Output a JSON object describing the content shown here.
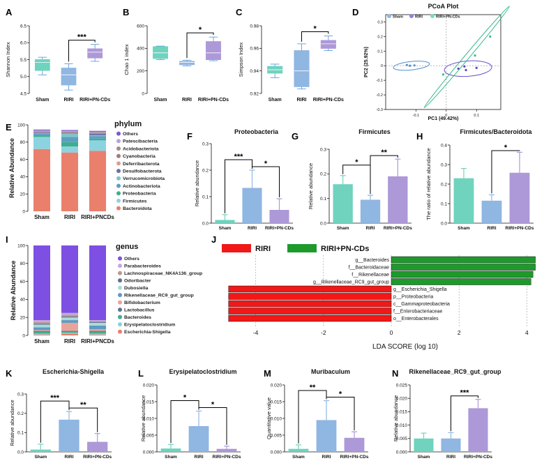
{
  "panel_letters": [
    "A",
    "B",
    "C",
    "D",
    "E",
    "F",
    "G",
    "H",
    "I",
    "J",
    "K",
    "L",
    "M",
    "N"
  ],
  "colors": {
    "sham": "#6fd3be",
    "riri": "#90b6e2",
    "pn": "#ad98d8",
    "riri_green": "#1e9a2c",
    "riri_red": "#f01818"
  },
  "chart_data": [
    {
      "id": "A",
      "type": "box",
      "title": "",
      "ylabel": "Shannon Index",
      "categories": [
        "Sham",
        "RIRI",
        "RIRI+PN-CDs"
      ],
      "ylim": [
        4.5,
        6.5
      ],
      "yticks": [
        "4.5",
        "5.0",
        "5.5",
        "6.0",
        "6.5"
      ],
      "boxes": [
        {
          "min": 5.05,
          "q1": 5.18,
          "median": 5.42,
          "q3": 5.5,
          "max": 5.57
        },
        {
          "min": 4.6,
          "q1": 4.75,
          "median": 5.05,
          "q3": 5.25,
          "max": 5.38
        },
        {
          "min": 5.45,
          "q1": 5.55,
          "median": 5.72,
          "q3": 5.82,
          "max": 5.95
        }
      ],
      "significance": [
        {
          "from": 1,
          "to": 2,
          "label": "***"
        }
      ]
    },
    {
      "id": "B",
      "type": "box",
      "title": "",
      "ylabel": "Chao 1 index",
      "categories": [
        "Sham",
        "RIRI",
        "RIRI+PN-CDs"
      ],
      "ylim": [
        0,
        600
      ],
      "yticks": [
        "0",
        "200",
        "400",
        "600"
      ],
      "boxes": [
        {
          "min": 300,
          "q1": 310,
          "median": 360,
          "q3": 415,
          "max": 420
        },
        {
          "min": 245,
          "q1": 255,
          "median": 275,
          "q3": 285,
          "max": 295
        },
        {
          "min": 290,
          "q1": 300,
          "median": 360,
          "q3": 460,
          "max": 500
        }
      ],
      "significance": [
        {
          "from": 1,
          "to": 2,
          "label": "*"
        }
      ]
    },
    {
      "id": "C",
      "type": "box",
      "title": "",
      "ylabel": "Simpson Index",
      "categories": [
        "Sham",
        "RIRI",
        "RIRI+PN-CDs"
      ],
      "ylim": [
        0.92,
        0.98
      ],
      "yticks": [
        "0.92",
        "0.94",
        "0.96",
        "0.98"
      ],
      "boxes": [
        {
          "min": 0.934,
          "q1": 0.938,
          "median": 0.941,
          "q3": 0.944,
          "max": 0.946
        },
        {
          "min": 0.924,
          "q1": 0.926,
          "median": 0.94,
          "q3": 0.958,
          "max": 0.964
        },
        {
          "min": 0.958,
          "q1": 0.96,
          "median": 0.964,
          "q3": 0.967,
          "max": 0.971
        }
      ],
      "significance": [
        {
          "from": 1,
          "to": 2,
          "label": "*"
        }
      ]
    },
    {
      "id": "D",
      "type": "scatter",
      "title": "PCoA Plot",
      "xlabel": "PC1 (49.42%)",
      "ylabel": "PC2 (25.92%)",
      "xlim": [
        -0.2,
        0.18
      ],
      "ylim": [
        -0.3,
        0.35
      ],
      "xticks": [
        "-0.1",
        "0",
        "0.1"
      ],
      "yticks": [
        "-0.3",
        "-0.2",
        "-0.1",
        "0",
        "0.1",
        "0.2",
        "0.3"
      ],
      "legend": [
        "Sham",
        "RIRI",
        "RIRI+PN-CDs"
      ],
      "series": [
        {
          "name": "Sham",
          "points": [
            [
              -0.13,
              0.005
            ],
            [
              -0.12,
              0.0
            ],
            [
              -0.105,
              0.002
            ]
          ]
        },
        {
          "name": "RIRI",
          "points": [
            [
              0.04,
              -0.02
            ],
            [
              0.06,
              -0.005
            ],
            [
              0.1,
              -0.015
            ],
            [
              0.065,
              -0.03
            ]
          ]
        },
        {
          "name": "RIRI+PN-CDs",
          "points": [
            [
              -0.01,
              -0.06
            ],
            [
              0.095,
              0.07
            ],
            [
              0.145,
              0.2
            ]
          ]
        }
      ]
    },
    {
      "id": "E",
      "type": "stacked_bar",
      "ylabel": "Relative Abundance",
      "legend_title": "phylum",
      "categories": [
        "Sham",
        "RIRI",
        "RIRI+PNCDs"
      ],
      "ylim": [
        0,
        100
      ],
      "yticks": [
        "0",
        "20",
        "40",
        "60",
        "80",
        "100"
      ],
      "series": [
        {
          "name": "Bacteroidota",
          "values": [
            72,
            68,
            70
          ]
        },
        {
          "name": "Firmicutes",
          "values": [
            14,
            7,
            12
          ]
        },
        {
          "name": "Proteobacteria",
          "values": [
            2,
            5,
            2
          ]
        },
        {
          "name": "Actinobacteriota",
          "values": [
            2,
            6,
            3
          ]
        },
        {
          "name": "Verrucomicrobiota",
          "values": [
            0.5,
            4,
            1
          ]
        },
        {
          "name": "Desulfobacterota",
          "values": [
            1,
            1,
            2
          ]
        },
        {
          "name": "Deferribacterota",
          "values": [
            0.5,
            0.5,
            0.5
          ]
        },
        {
          "name": "Cyanobacteria",
          "values": [
            0.5,
            0.5,
            0.5
          ]
        },
        {
          "name": "Acidobacteriota",
          "values": [
            0.5,
            0.5,
            0.5
          ]
        },
        {
          "name": "Patescibacteria",
          "values": [
            0.5,
            0.5,
            0.5
          ]
        },
        {
          "name": "Others",
          "values": [
            1,
            1,
            1
          ]
        }
      ],
      "legend_order": [
        "Others",
        "Patescibacteria",
        "Acidobacteriota",
        "Cyanobacteria",
        "Deferribacterota",
        "Desulfobacterota",
        "Verrucomicrobiota",
        "Actinobacteriota",
        "Proteobacteria",
        "Firmicutes",
        "Bacteroidota"
      ]
    },
    {
      "id": "F",
      "type": "bar",
      "title": "Proteobacteria",
      "ylabel": "Relative abundance",
      "categories": [
        "Sham",
        "RIRI",
        "RIRI+PN-CDs"
      ],
      "values": [
        0.012,
        0.133,
        0.05
      ],
      "errors": [
        0.02,
        0.067,
        0.042
      ],
      "ylim": [
        0,
        0.3
      ],
      "yticks": [
        "0.0",
        "0.1",
        "0.2",
        "0.3"
      ],
      "significance": [
        {
          "from": 0,
          "to": 1,
          "label": "***"
        },
        {
          "from": 1,
          "to": 2,
          "label": "*"
        }
      ]
    },
    {
      "id": "G",
      "type": "bar",
      "title": "Firmicutes",
      "ylabel": "Relative abundance",
      "categories": [
        "Sham",
        "RIRI",
        "RIRI+PN-CDs"
      ],
      "values": [
        0.158,
        0.095,
        0.19
      ],
      "errors": [
        0.035,
        0.018,
        0.07
      ],
      "ylim": [
        0,
        0.3
      ],
      "yticks": [
        "0.0",
        "0.1",
        "0.2",
        "0.3"
      ],
      "significance": [
        {
          "from": 0,
          "to": 1,
          "label": "*"
        },
        {
          "from": 1,
          "to": 2,
          "label": "**"
        }
      ]
    },
    {
      "id": "H",
      "type": "bar",
      "title": "Firmicutes/Bacteroidota",
      "ylabel": "The ratio of relative abundance",
      "categories": [
        "Sham",
        "RIRI",
        "RIRI+PN-CDs"
      ],
      "values": [
        0.23,
        0.115,
        0.258
      ],
      "errors": [
        0.05,
        0.03,
        0.105
      ],
      "ylim": [
        0,
        0.4
      ],
      "yticks": [
        "0.0",
        "0.1",
        "0.2",
        "0.3",
        "0.4"
      ],
      "significance": [
        {
          "from": 1,
          "to": 2,
          "label": "*"
        }
      ]
    },
    {
      "id": "I",
      "type": "stacked_bar",
      "ylabel": "Relative Abundance",
      "legend_title": "genus",
      "categories": [
        "Sham",
        "RIRI",
        "RIRI+PNCDs"
      ],
      "ylim": [
        0,
        100
      ],
      "yticks": [
        "0",
        "20",
        "40",
        "60",
        "80",
        "100"
      ],
      "series": [
        {
          "name": "Escherichia-Shigella",
          "values": [
            1,
            2,
            1
          ]
        },
        {
          "name": "Erysipelatoclostridium",
          "values": [
            1,
            1,
            1
          ]
        },
        {
          "name": "Bacteroides",
          "values": [
            2,
            1,
            2
          ]
        },
        {
          "name": "Lactobacillus",
          "values": [
            1,
            1,
            1
          ]
        },
        {
          "name": "Bifidobacterium",
          "values": [
            1,
            9,
            2
          ]
        },
        {
          "name": "Rikenellaceae_RC9_gut_group",
          "values": [
            3,
            3,
            4
          ]
        },
        {
          "name": "Dubosiella",
          "values": [
            3,
            3,
            3
          ]
        },
        {
          "name": "Odoribacter",
          "values": [
            1,
            1,
            1
          ]
        },
        {
          "name": "Lachnospiraceae_NK4A136_group",
          "values": [
            2,
            2,
            1
          ]
        },
        {
          "name": "Parabacteroides",
          "values": [
            2,
            2,
            1
          ]
        },
        {
          "name": "Others",
          "values": [
            83,
            75,
            83
          ]
        }
      ],
      "legend_order": [
        "Others",
        "Parabacteroides",
        "Lachnospiraceae_NK4A136_group",
        "Odoribacter",
        "Dubosiella",
        "Rikenellaceae_RC9_gut_group",
        "Bifidobacterium",
        "Lactobacillus",
        "Bacteroides",
        "Erysipelatoclostridium",
        "Escherichia-Shigella"
      ]
    },
    {
      "id": "J",
      "type": "lda",
      "xlabel": "LDA SCORE (log 10)",
      "legend": [
        "RIRI",
        "RIRI+PN-CDs"
      ],
      "xlim": [
        -5,
        4.3
      ],
      "xticks": [
        "-4",
        "-2",
        "0",
        "2",
        "4"
      ],
      "features": [
        {
          "name": "g__Bacteroides",
          "score": 4.25,
          "group": "RIRI+PN-CDs"
        },
        {
          "name": "f__Bacteroidaceae",
          "score": 4.25,
          "group": "RIRI+PN-CDs"
        },
        {
          "name": "f__Rikenellaceae",
          "score": 4.18,
          "group": "RIRI+PN-CDs"
        },
        {
          "name": "g__Rikenellaceae_RC9_gut_group",
          "score": 4.12,
          "group": "RIRI+PN-CDs"
        },
        {
          "name": "g__Escherichia_Shigella",
          "score": -4.8,
          "group": "RIRI"
        },
        {
          "name": "p__Proteobacteria",
          "score": -4.8,
          "group": "RIRI"
        },
        {
          "name": "c__Gammaproteobacteria",
          "score": -4.8,
          "group": "RIRI"
        },
        {
          "name": "f__Enterobacteriaceae",
          "score": -4.8,
          "group": "RIRI"
        },
        {
          "name": "o__Enterobacterales",
          "score": -4.8,
          "group": "RIRI"
        }
      ]
    },
    {
      "id": "K",
      "type": "bar",
      "title": "Escherichia-Shigella",
      "ylabel": "Relative abundance",
      "categories": [
        "Sham",
        "RIRI",
        "RIRI+PN-CDs"
      ],
      "values": [
        0.012,
        0.167,
        0.052
      ],
      "errors": [
        0.028,
        0.042,
        0.043
      ],
      "ylim": [
        0,
        0.3
      ],
      "yticks": [
        "0.0",
        "0.1",
        "0.2",
        "0.3"
      ],
      "significance": [
        {
          "from": 0,
          "to": 1,
          "label": "***"
        },
        {
          "from": 1,
          "to": 2,
          "label": "**"
        }
      ]
    },
    {
      "id": "L",
      "type": "bar",
      "title": "Erysipelatoclostridium",
      "ylabel": "Relative abundance",
      "categories": [
        "Sham",
        "RIRI",
        "RIRI+PN-CDs"
      ],
      "values": [
        0.001,
        0.0077,
        0.0009
      ],
      "errors": [
        0.0012,
        0.0045,
        0.0008
      ],
      "ylim": [
        0,
        0.02
      ],
      "yticks": [
        "0.000",
        "0.005",
        "0.010",
        "0.015",
        "0.020"
      ],
      "significance": [
        {
          "from": 0,
          "to": 1,
          "label": "*"
        },
        {
          "from": 1,
          "to": 2,
          "label": "*"
        }
      ]
    },
    {
      "id": "M",
      "type": "bar",
      "title": "Muribaculum",
      "ylabel": "Quantitative value",
      "categories": [
        "Sham",
        "RIRI",
        "RIRI+PN-CDs"
      ],
      "values": [
        0.0009,
        0.0095,
        0.0042
      ],
      "errors": [
        0.0012,
        0.0058,
        0.0018
      ],
      "ylim": [
        0,
        0.02
      ],
      "yticks": [
        "0.000",
        "0.005",
        "0.010",
        "0.015",
        "0.020"
      ],
      "significance": [
        {
          "from": 0,
          "to": 1,
          "label": "**"
        },
        {
          "from": 1,
          "to": 2,
          "label": "*"
        }
      ]
    },
    {
      "id": "N",
      "type": "bar",
      "title": "Rikenellaceae_RC9_gut_group",
      "ylabel": "Relative abundance",
      "categories": [
        "Sham",
        "RIRI",
        "RIRI+PN-CDs"
      ],
      "values": [
        0.005,
        0.005,
        0.0163
      ],
      "errors": [
        0.002,
        0.0022,
        0.0033
      ],
      "ylim": [
        0,
        0.025
      ],
      "yticks": [
        "0.000",
        "0.005",
        "0.010",
        "0.015",
        "0.020",
        "0.025"
      ],
      "significance": [
        {
          "from": 1,
          "to": 2,
          "label": "***"
        }
      ]
    }
  ]
}
